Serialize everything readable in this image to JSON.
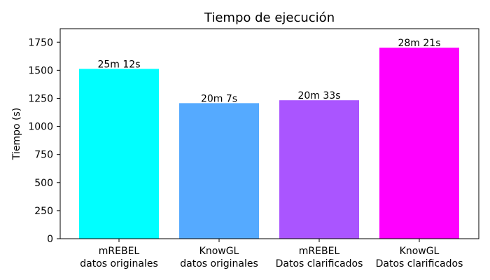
{
  "chart_data": {
    "type": "bar",
    "title": "Tiempo de ejecución",
    "xlabel": "",
    "ylabel": "Tiempo (s)",
    "categories": [
      [
        "mREBEL",
        "datos originales"
      ],
      [
        "KnowGL",
        "datos originales"
      ],
      [
        "mREBEL",
        "Datos clarificados"
      ],
      [
        "KnowGL",
        "Datos clarificados"
      ]
    ],
    "values": [
      1512,
      1207,
      1233,
      1701
    ],
    "data_labels": [
      "25m 12s",
      "20m 7s",
      "20m 33s",
      "28m 21s"
    ],
    "colors": [
      "#00ffff",
      "#55aaff",
      "#aa55ff",
      "#ff00ff"
    ],
    "ylim": [
      0,
      1870
    ],
    "yticks": [
      0,
      250,
      500,
      750,
      1000,
      1250,
      1500,
      1750
    ],
    "grid": false,
    "legend": "none"
  }
}
